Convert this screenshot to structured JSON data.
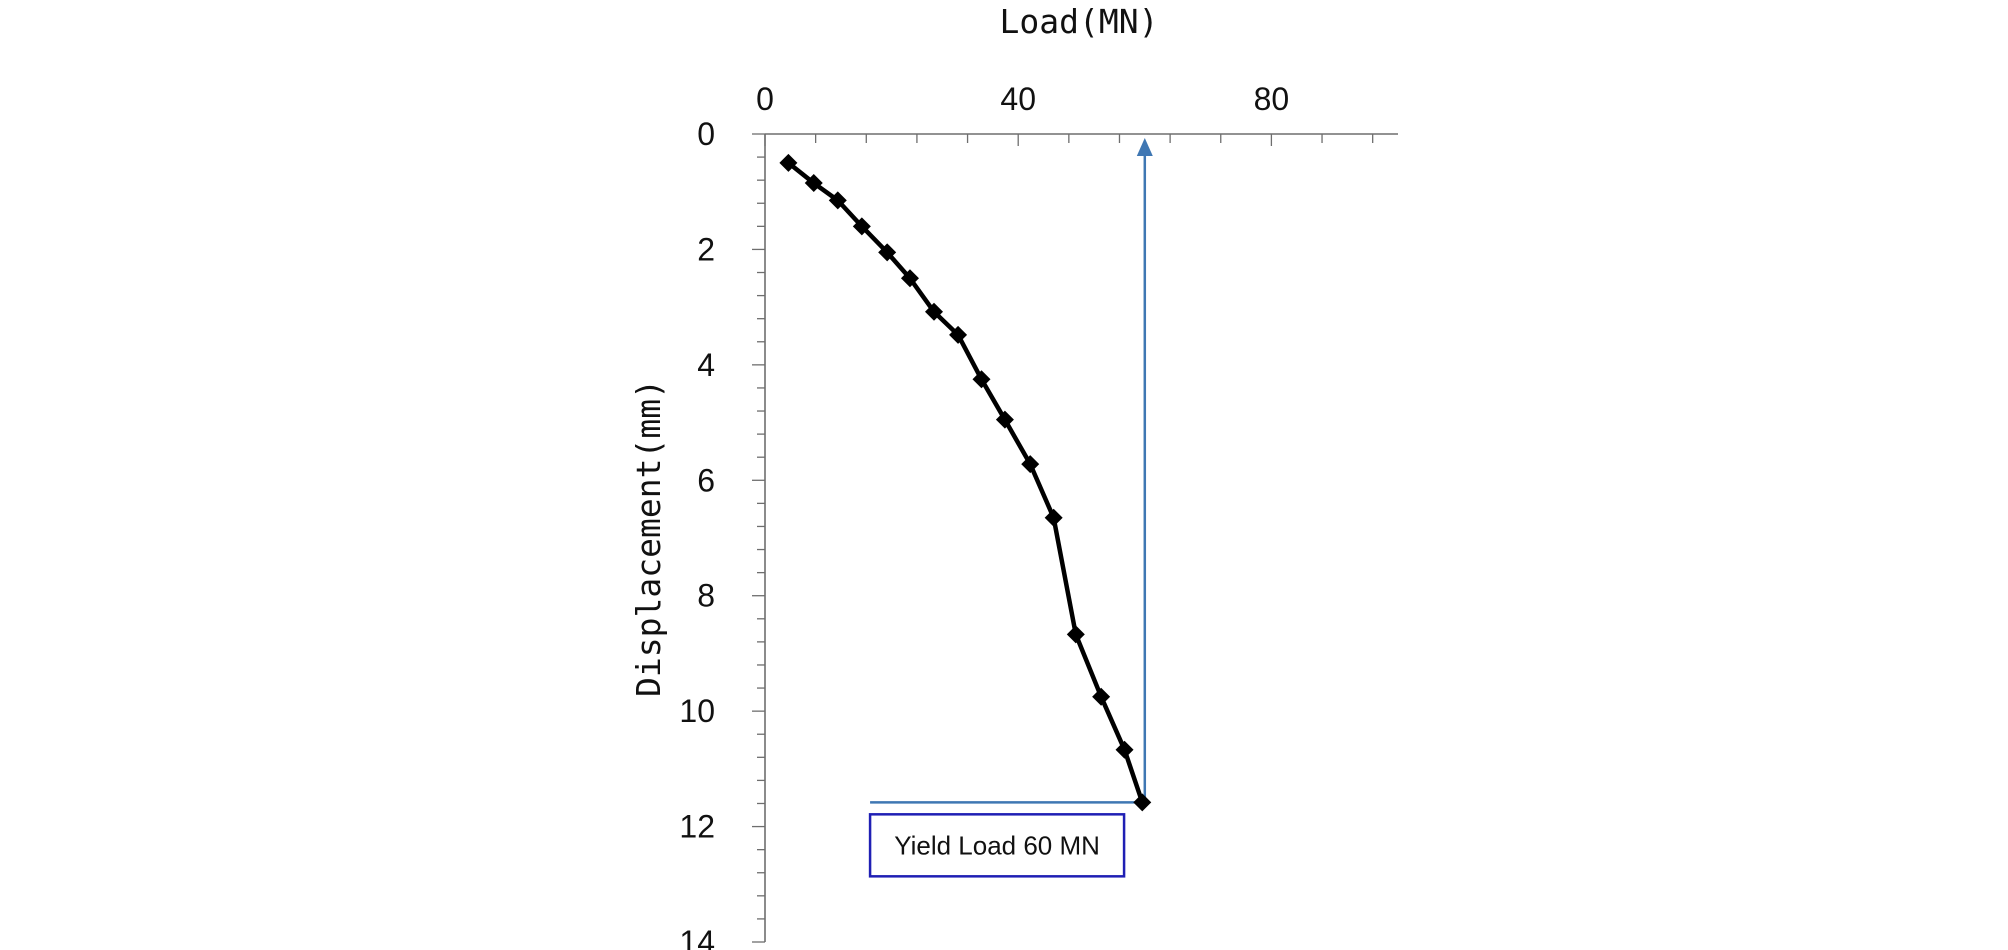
{
  "chart_data": {
    "type": "line",
    "title": "",
    "xlabel": "Load(MN)",
    "ylabel": "Displacement(mm)",
    "xlim": [
      0,
      100
    ],
    "ylim": [
      0,
      14
    ],
    "x_axis_position": "top",
    "y_axis_inverted": true,
    "grid": false,
    "legend": "none",
    "x_major_ticks": [
      0,
      40,
      80
    ],
    "x_tick_labels": [
      "0",
      "40",
      "80"
    ],
    "x_minor_step": 8,
    "y_major_ticks": [
      0,
      2,
      4,
      6,
      8,
      10,
      12,
      14
    ],
    "y_tick_labels": [
      "0",
      "2",
      "4",
      "6",
      "8",
      "10",
      "12",
      "14"
    ],
    "y_minor_step": 0.4,
    "series": [
      {
        "color": "#000000",
        "marker": "diamond",
        "points": [
          {
            "x": 3.7,
            "y": 0.5
          },
          {
            "x": 7.7,
            "y": 0.85
          },
          {
            "x": 11.5,
            "y": 1.15
          },
          {
            "x": 15.3,
            "y": 1.6
          },
          {
            "x": 19.3,
            "y": 2.05
          },
          {
            "x": 22.9,
            "y": 2.5
          },
          {
            "x": 26.7,
            "y": 3.08
          },
          {
            "x": 30.5,
            "y": 3.48
          },
          {
            "x": 34.2,
            "y": 4.25
          },
          {
            "x": 37.9,
            "y": 4.95
          },
          {
            "x": 41.9,
            "y": 5.72
          },
          {
            "x": 45.6,
            "y": 6.65
          },
          {
            "x": 49.1,
            "y": 8.67
          },
          {
            "x": 53.1,
            "y": 9.75
          },
          {
            "x": 56.8,
            "y": 10.67
          },
          {
            "x": 59.6,
            "y": 11.58
          }
        ]
      }
    ],
    "annotations": {
      "yield_line_color": "#3f77b3",
      "yield_load": 60,
      "yield_displacement": 11.58,
      "horizontal_line_from_x": 16.6,
      "label": "Yield Load 60 MN",
      "label_border_color": "#1f1fb4"
    }
  }
}
